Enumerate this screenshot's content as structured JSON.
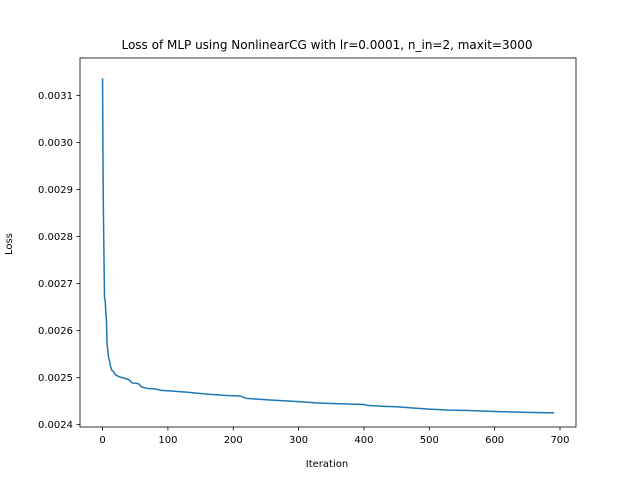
{
  "chart_data": {
    "type": "line",
    "title": "Loss of MLP using NonlinearCG with lr=0.0001, n_in=2, maxit=3000",
    "xlabel": "Iteration",
    "ylabel": "Loss",
    "xlim": [
      -34.5,
      724.5
    ],
    "ylim": [
      0.002395,
      0.00318
    ],
    "xticks": [
      0,
      100,
      200,
      300,
      400,
      500,
      600,
      700
    ],
    "xtick_labels": [
      "0",
      "100",
      "200",
      "300",
      "400",
      "500",
      "600",
      "700"
    ],
    "yticks": [
      0.0024,
      0.0025,
      0.0026,
      0.0027,
      0.0028,
      0.0029,
      0.003,
      0.0031
    ],
    "ytick_labels": [
      "0.0024",
      "0.0025",
      "0.0026",
      "0.0027",
      "0.0028",
      "0.0029",
      "0.0030",
      "0.0031"
    ],
    "grid": false,
    "line_color": "#1f77b4",
    "series": [
      {
        "x": [
          0,
          1,
          2,
          3,
          4,
          5,
          6,
          7,
          8,
          9,
          10,
          12,
          14,
          16,
          20,
          25,
          30,
          40,
          45,
          55,
          60,
          70,
          80,
          90,
          100,
          130,
          160,
          190,
          210,
          220,
          250,
          300,
          330,
          350,
          400,
          405,
          430,
          450,
          470,
          480,
          500,
          530,
          560,
          600,
          650,
          690
        ],
        "values": [
          0.003135,
          0.00289,
          0.00278,
          0.00267,
          0.002665,
          0.00264,
          0.00262,
          0.002568,
          0.00256,
          0.002545,
          0.00254,
          0.002525,
          0.002516,
          0.002514,
          0.002506,
          0.002502,
          0.0025,
          0.002496,
          0.002489,
          0.002487,
          0.00248,
          0.002477,
          0.002476,
          0.002473,
          0.002472,
          0.002469,
          0.002465,
          0.002462,
          0.002461,
          0.002456,
          0.002453,
          0.002449,
          0.002446,
          0.002445,
          0.002443,
          0.002441,
          0.002439,
          0.002438,
          0.002436,
          0.002435,
          0.002433,
          0.002431,
          0.00243,
          0.002428,
          0.002426,
          0.002425
        ]
      }
    ]
  }
}
